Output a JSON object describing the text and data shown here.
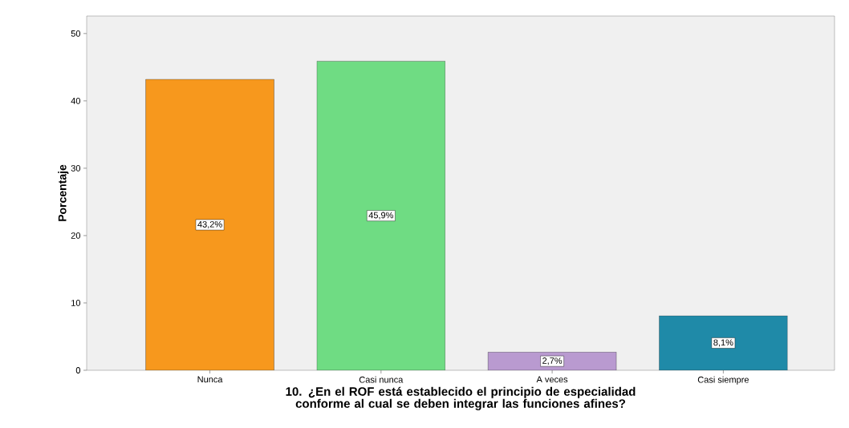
{
  "chart_data": {
    "type": "bar",
    "xlabel": "10.   ¿En el ROF está establecido el principio de especialidad conforme al cual se deben integrar las funciones afines?",
    "ylabel": "Porcentaje",
    "categories": [
      "Nunca",
      "Casi nunca",
      "A veces",
      "Casi siempre"
    ],
    "values": [
      43.2,
      45.9,
      2.7,
      8.1
    ],
    "colors": [
      "#f7981d",
      "#6fdc83",
      "#b99ad0",
      "#1f8aa8"
    ],
    "value_labels": [
      "43,2%",
      "45,9%",
      "2,7%",
      "8,1%"
    ],
    "ylim": [
      0,
      52.6
    ],
    "yticks": [
      0,
      10,
      20,
      30,
      40,
      50
    ],
    "grid": false
  }
}
